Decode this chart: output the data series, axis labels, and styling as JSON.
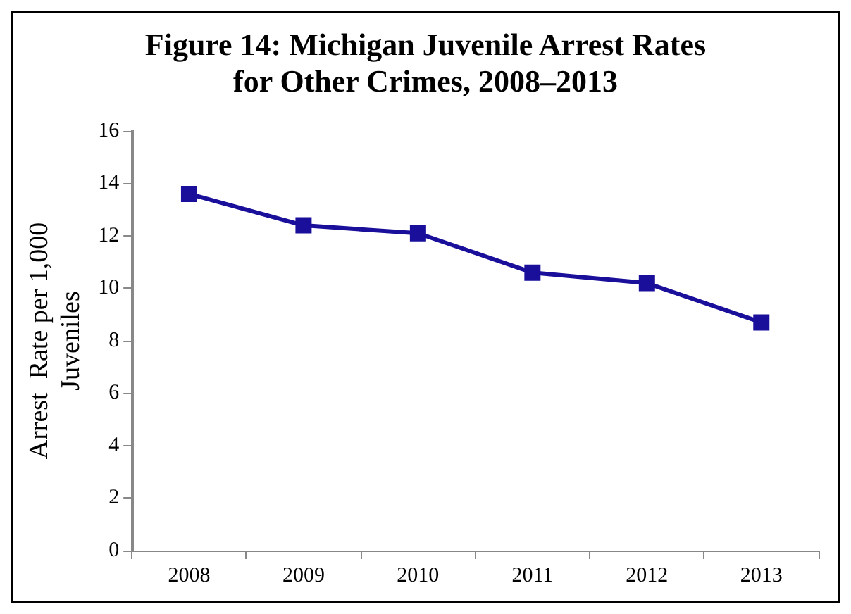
{
  "chart_data": {
    "type": "line",
    "title": "Figure 14: Michigan Juvenile Arrest Rates for Other Crimes, 2008–2013",
    "ylabel": "Arrest  Rate per 1,000 Juveniles",
    "categories": [
      "2008",
      "2009",
      "2010",
      "2011",
      "2012",
      "2013"
    ],
    "series": [
      {
        "color": "#1a0f9a",
        "values": [
          13.6,
          12.4,
          12.1,
          10.6,
          10.2,
          8.7
        ]
      }
    ],
    "ylim": [
      0,
      16
    ],
    "yticks": [
      0,
      2,
      4,
      6,
      8,
      10,
      12,
      14,
      16
    ],
    "grid": false,
    "legend": false,
    "marker": "square",
    "line_style": "solid"
  }
}
